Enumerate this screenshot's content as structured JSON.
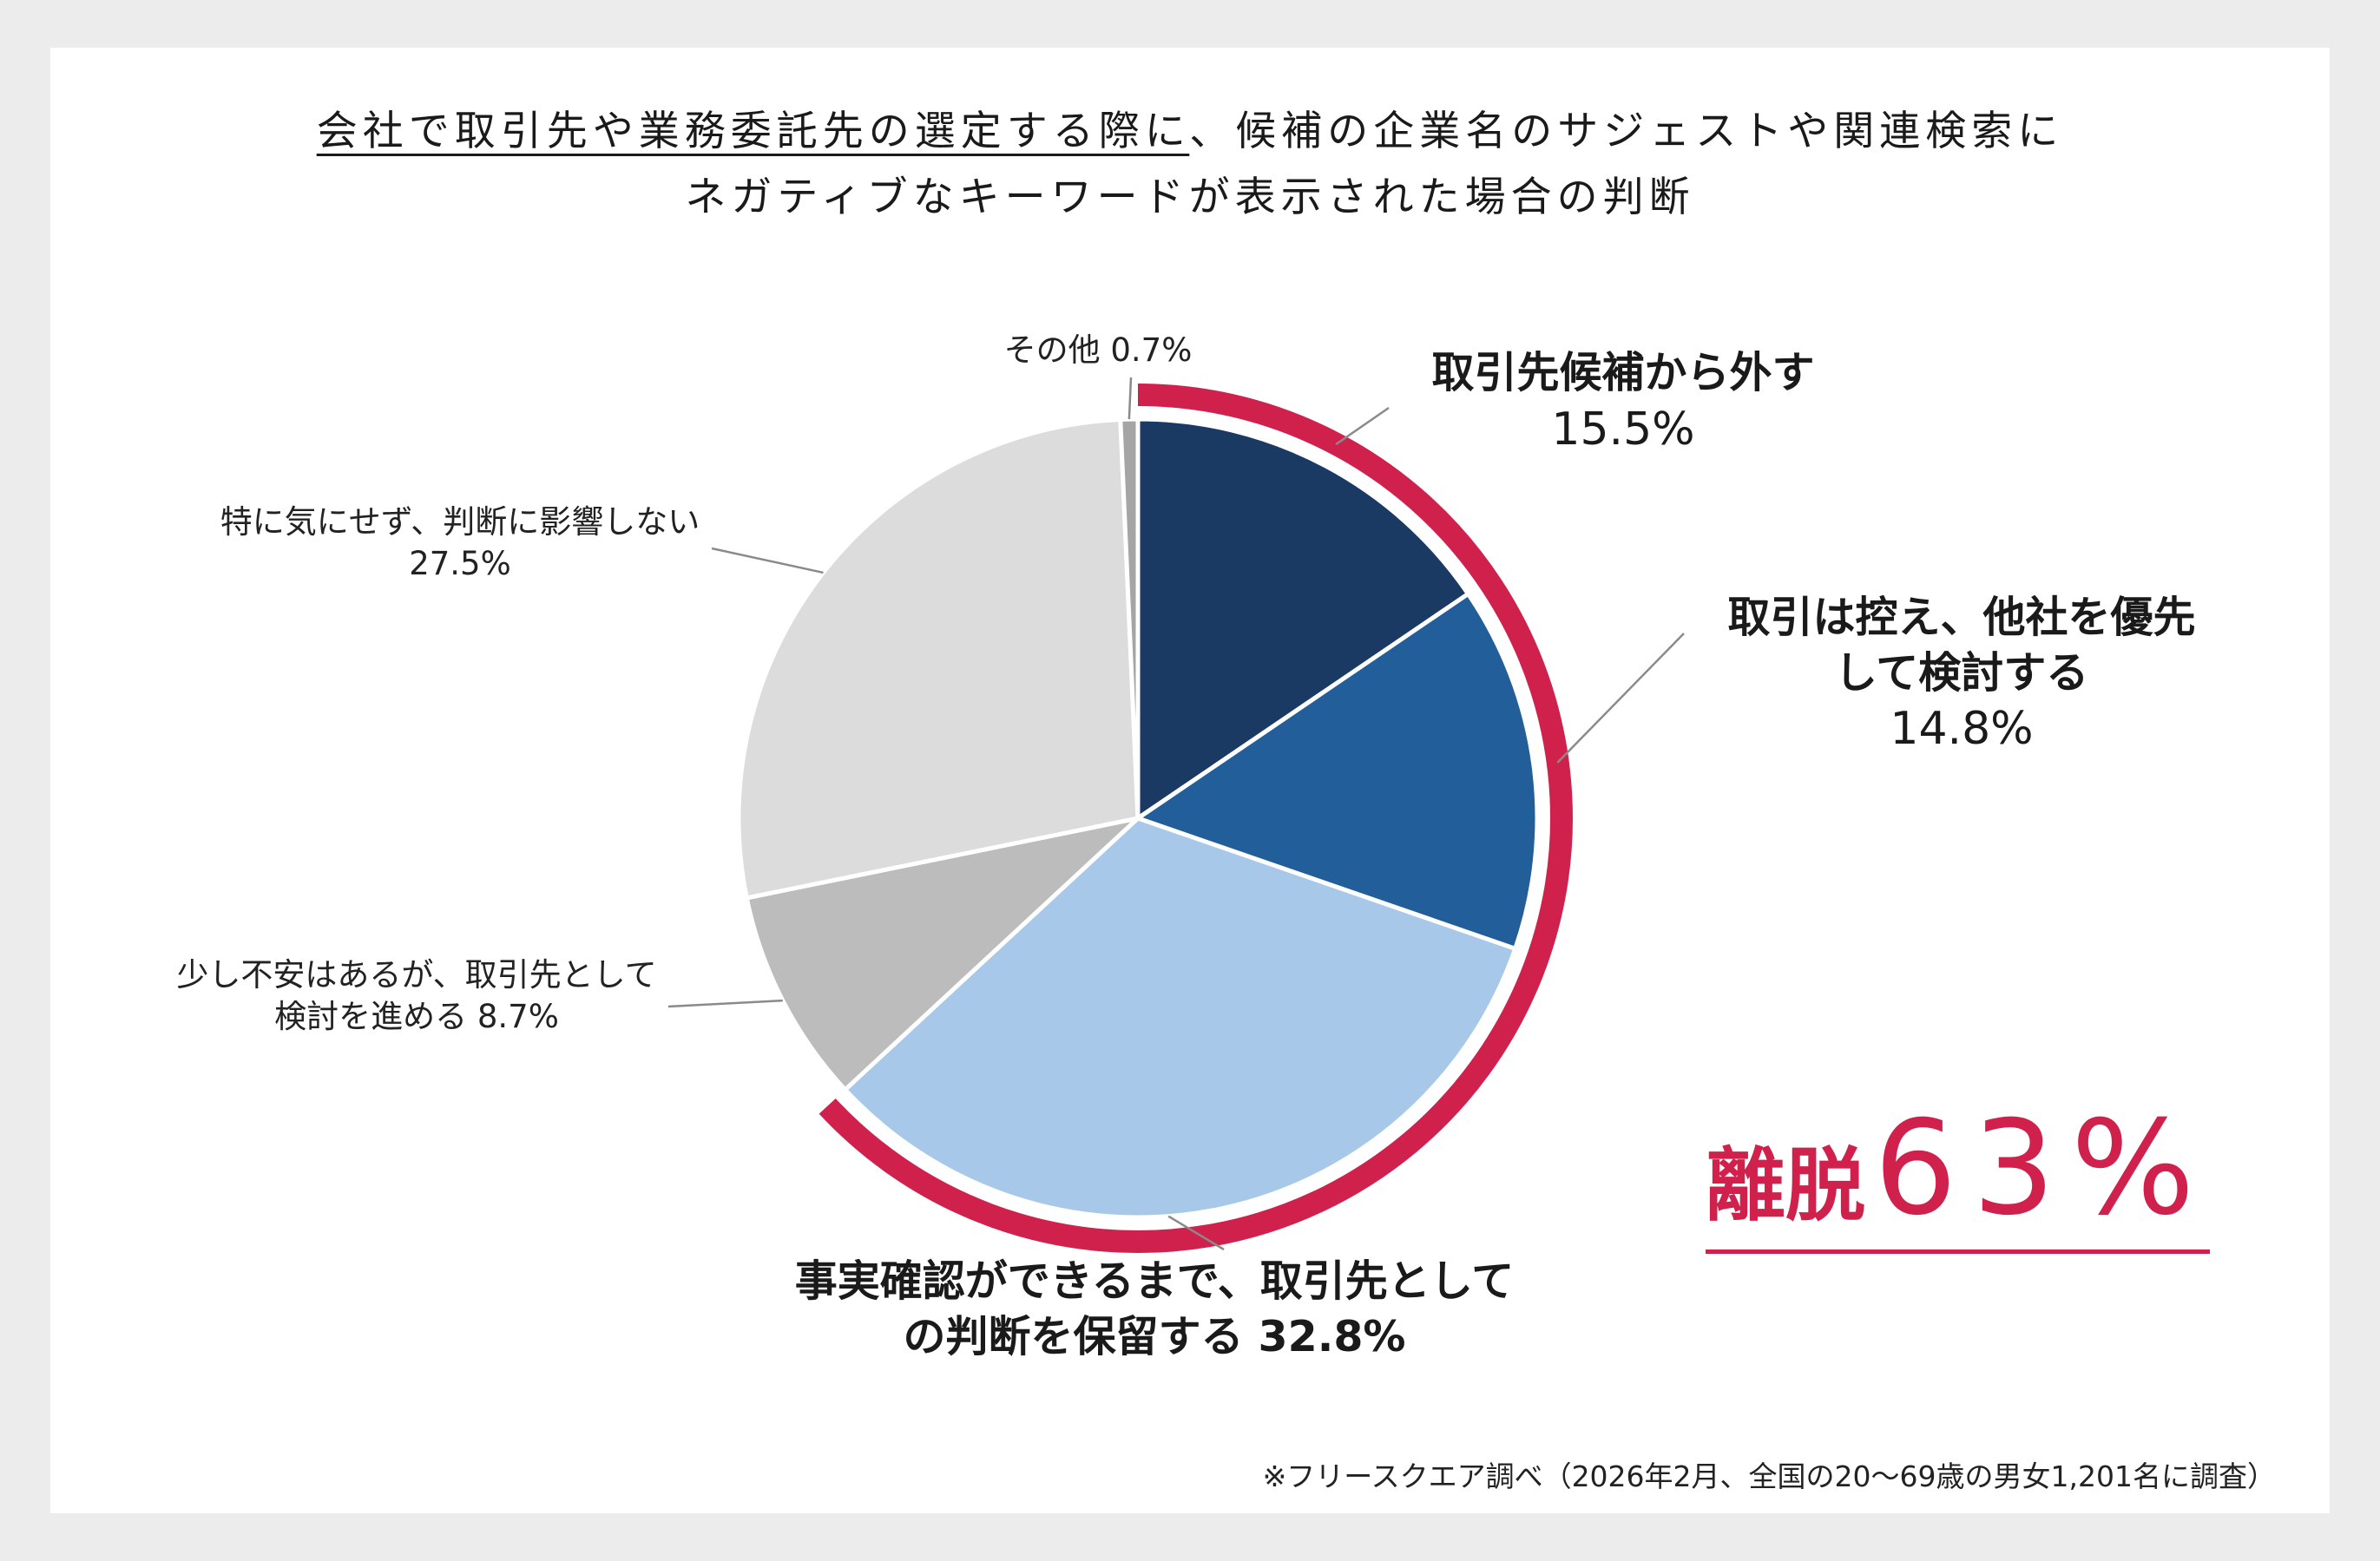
{
  "title": {
    "line1_underlined": "会社で取引先や業務委託先の選定する際に",
    "line1_rest": "、候補の企業名のサジェストや関連検索に",
    "line2": "ネガティブなキーワードが表示された場合の判断"
  },
  "chart_data": {
    "type": "pie",
    "slices": [
      {
        "label": "取引先候補から外す",
        "value": 15.5,
        "value_text": "15.5%",
        "color": "#1b3a63"
      },
      {
        "label": "取引は控え、他社を優先して検討する",
        "value": 14.8,
        "value_text": "14.8%",
        "color": "#215e9a"
      },
      {
        "label": "事実確認ができるまで、取引先としての判断を保留する",
        "value": 32.8,
        "value_text": "32.8%",
        "color": "#a7c8e9"
      },
      {
        "label": "少し不安はあるが、取引先として検討を進める",
        "value": 8.7,
        "value_text": "8.7%",
        "color": "#bcbcbc"
      },
      {
        "label": "特に気にせず、判断に影響しない",
        "value": 27.5,
        "value_text": "27.5%",
        "color": "#dcdcdc"
      },
      {
        "label": "その他",
        "value": 0.7,
        "value_text": "0.7%",
        "color": "#a5a5a5"
      }
    ],
    "highlight": {
      "label": "離脱",
      "value_text": "63%",
      "value": 63,
      "color": "#d0214d"
    }
  },
  "labels": {
    "s1": {
      "line1": "取引先候補から外す",
      "pct": "15.5%"
    },
    "s2": {
      "line1": "取引は控え、他社を優先",
      "line2": "して検討する",
      "pct": "14.8%"
    },
    "s3": {
      "line1": "事実確認ができるまで、取引先として",
      "line2": "の判断を保留する 32.8%"
    },
    "s4": {
      "line1": "少し不安はあるが、取引先として",
      "line2": "検討を進める 8.7%"
    },
    "s5": {
      "line1": "特に気にせず、判断に影響しない",
      "pct": "27.5%"
    },
    "s6": {
      "line1": "その他 0.7%"
    }
  },
  "source": "※フリースクエア調べ（2026年2月、全国の20～69歳の男女1,201名に調査）"
}
